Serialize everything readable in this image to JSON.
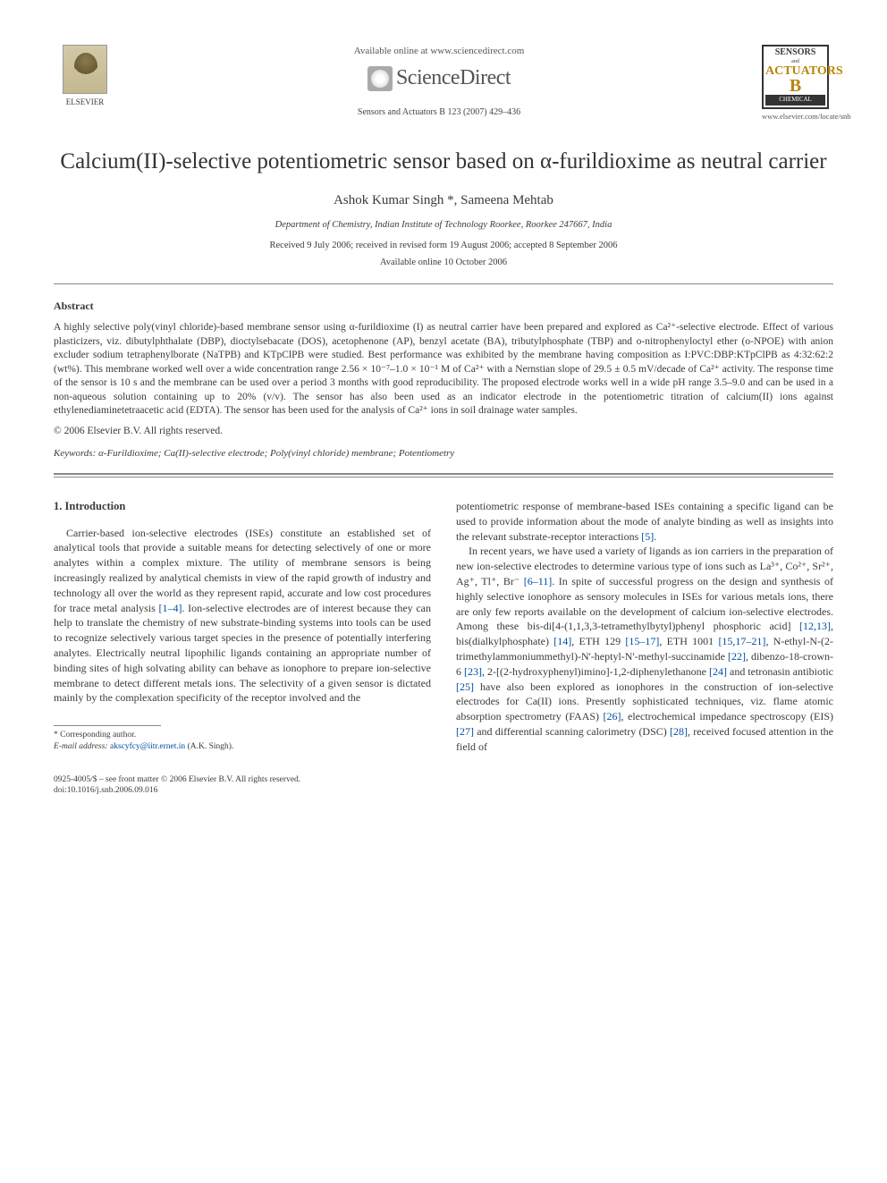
{
  "header": {
    "available_online": "Available online at www.sciencedirect.com",
    "sciencedirect": "ScienceDirect",
    "citation": "Sensors and Actuators B 123 (2007) 429–436",
    "elsevier_label": "ELSEVIER",
    "journal_box": {
      "top": "SENSORS",
      "and": "and",
      "mid": "ACTUATORS",
      "b": "B",
      "bot": "CHEMICAL"
    },
    "journal_url": "www.elsevier.com/locate/snb"
  },
  "title": "Calcium(II)-selective potentiometric sensor based on α-furildioxime as neutral carrier",
  "authors": "Ashok Kumar Singh *, Sameena Mehtab",
  "affiliation": "Department of Chemistry, Indian Institute of Technology Roorkee, Roorkee 247667, India",
  "dates_line1": "Received 9 July 2006; received in revised form 19 August 2006; accepted 8 September 2006",
  "dates_line2": "Available online 10 October 2006",
  "abstract_label": "Abstract",
  "abstract_text": "A highly selective poly(vinyl chloride)-based membrane sensor using α-furildioxime (I) as neutral carrier have been prepared and explored as Ca²⁺-selective electrode. Effect of various plasticizers, viz. dibutylphthalate (DBP), dioctylsebacate (DOS), acetophenone (AP), benzyl acetate (BA), tributylphosphate (TBP) and o-nitrophenyloctyl ether (o-NPOE) with anion excluder sodium tetraphenylborate (NaTPB) and KTpClPB were studied. Best performance was exhibited by the membrane having composition as I:PVC:DBP:KTpClPB as 4:32:62:2 (wt%). This membrane worked well over a wide concentration range 2.56 × 10⁻⁷–1.0 × 10⁻¹ M of Ca²⁺ with a Nernstian slope of 29.5 ± 0.5 mV/decade of Ca²⁺ activity. The response time of the sensor is 10 s and the membrane can be used over a period 3 months with good reproducibility. The proposed electrode works well in a wide pH range 3.5–9.0 and can be used in a non-aqueous solution containing up to 20% (v/v). The sensor has also been used as an indicator electrode in the potentiometric titration of calcium(II) ions against ethylenediaminetetraacetic acid (EDTA). The sensor has been used for the analysis of Ca²⁺ ions in soil drainage water samples.",
  "copyright": "© 2006 Elsevier B.V. All rights reserved.",
  "keywords_label": "Keywords:",
  "keywords": " α-Furildioxime; Ca(II)-selective electrode; Poly(vinyl chloride) membrane; Potentiometry",
  "section1_heading": "1. Introduction",
  "col_left_p1a": "Carrier-based ion-selective electrodes (ISEs) constitute an established set of analytical tools that provide a suitable means for detecting selectively of one or more analytes within a complex mixture. The utility of membrane sensors is being increasingly realized by analytical chemists in view of the rapid growth of industry and technology all over the world as they represent rapid, accurate and low cost procedures for trace metal analysis ",
  "ref_1_4": "[1–4]",
  "col_left_p1b": ". Ion-selective electrodes are of interest because they can help to translate the chemistry of new substrate-binding systems into tools can be used to recognize selectively various target species in the presence of potentially interfering analytes. Electrically neutral lipophilic ligands containing an appropriate number of binding sites of high solvating ability can behave as ionophore to prepare ion-selective membrane to detect different metals ions. The selectivity of a given sensor is dictated mainly by the complexation specificity of the receptor involved and the",
  "col_right_p1a": "potentiometric response of membrane-based ISEs containing a specific ligand can be used to provide information about the mode of analyte binding as well as insights into the relevant substrate-receptor interactions ",
  "ref_5": "[5]",
  "col_right_p1b": ".",
  "col_right_p2a": "In recent years, we have used a variety of ligands as ion carriers in the preparation of new ion-selective electrodes to determine various type of ions such as La³⁺, Co²⁺, Sr²⁺, Ag⁺, Tl⁺, Br⁻ ",
  "ref_6_11": "[6–11]",
  "col_right_p2b": ". In spite of successful progress on the design and synthesis of highly selective ionophore as sensory molecules in ISEs for various metals ions, there are only few reports available on the development of calcium ion-selective electrodes. Among these bis-di[4-(1,1,3,3-tetramethylbytyl)phenyl phosphoric acid] ",
  "ref_12_13": "[12,13]",
  "col_right_p2c": ", bis(dialkylphosphate) ",
  "ref_14": "[14]",
  "col_right_p2d": ", ETH 129 ",
  "ref_15_17": "[15–17]",
  "col_right_p2e": ", ETH 1001 ",
  "ref_15_17_21": "[15,17–21]",
  "col_right_p2f": ", N-ethyl-N-(2-trimethylammoniummethyl)-N'-heptyl-N'-methyl-succinamide ",
  "ref_22": "[22]",
  "col_right_p2g": ", dibenzo-18-crown-6 ",
  "ref_23": "[23]",
  "col_right_p2h": ", 2-[(2-hydroxyphenyl)imino]-1,2-diphenylethanone ",
  "ref_24": "[24]",
  "col_right_p2i": " and tetronasin antibiotic ",
  "ref_25": "[25]",
  "col_right_p2j": " have also been explored as ionophores in the construction of ion-selective electrodes for Ca(II) ions. Presently sophisticated techniques, viz. flame atomic absorption spectrometry (FAAS) ",
  "ref_26": "[26]",
  "col_right_p2k": ", electrochemical impedance spectroscopy (EIS) ",
  "ref_27": "[27]",
  "col_right_p2l": " and differential scanning calorimetry (DSC) ",
  "ref_28": "[28]",
  "col_right_p2m": ", received focused attention in the field of",
  "footnote_star": "* Corresponding author.",
  "footnote_email_label": "E-mail address: ",
  "footnote_email": "akscyfcy@iitr.ernet.in",
  "footnote_email_suffix": " (A.K. Singh).",
  "footer_line1": "0925-4005/$ – see front matter © 2006 Elsevier B.V. All rights reserved.",
  "footer_doi": "doi:10.1016/j.snb.2006.09.016"
}
